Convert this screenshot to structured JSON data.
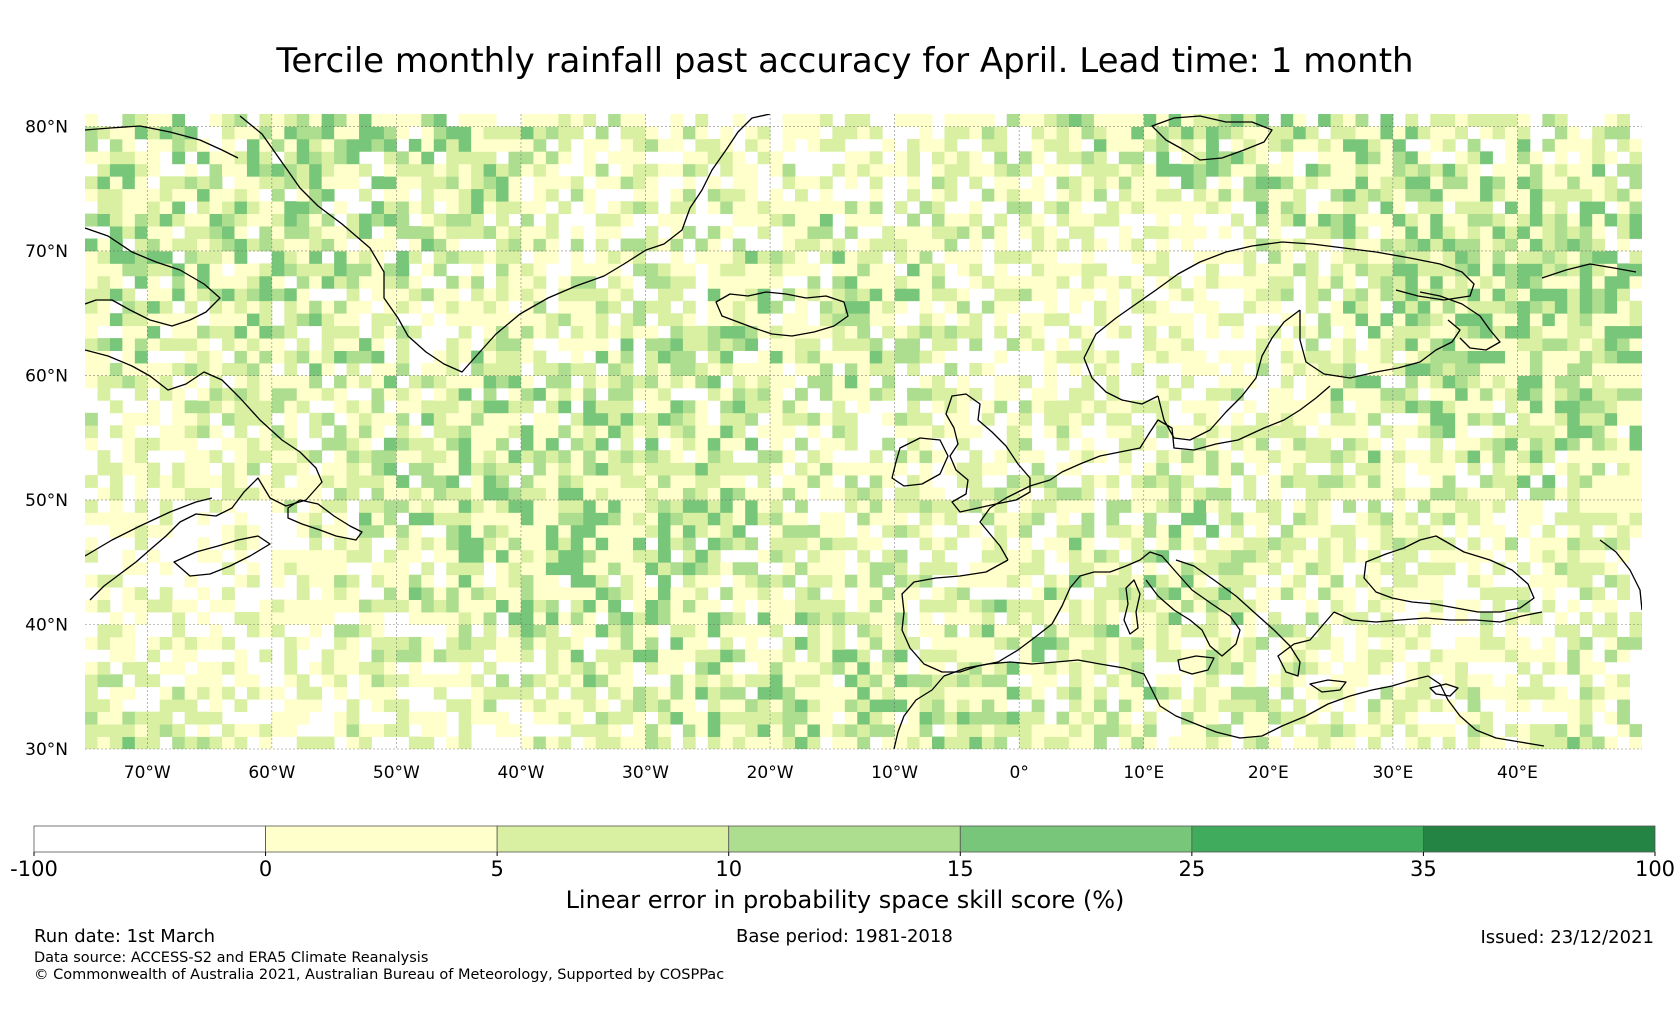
{
  "title": "Tercile monthly rainfall past accuracy for April. Lead time: 1 month",
  "map": {
    "region": "North Atlantic and Europe",
    "lon_range": [
      -75,
      50
    ],
    "lat_range": [
      30,
      81
    ],
    "lat_labels": [
      "80°N",
      "70°N",
      "60°N",
      "50°N",
      "40°N",
      "30°N"
    ],
    "lat_values": [
      80,
      70,
      60,
      50,
      40,
      30
    ],
    "lon_labels": [
      "70°W",
      "60°W",
      "50°W",
      "40°W",
      "30°W",
      "20°W",
      "10°W",
      "0°",
      "10°E",
      "20°E",
      "30°E",
      "40°E"
    ],
    "lon_values": [
      -70,
      -60,
      -50,
      -40,
      -30,
      -20,
      -10,
      0,
      10,
      20,
      30,
      40
    ],
    "grid_step_degrees": 1
  },
  "colorbar": {
    "boundaries": [
      "-100",
      "0",
      "5",
      "10",
      "15",
      "25",
      "35",
      "100"
    ],
    "colors": [
      "#ffffff",
      "#ffffcc",
      "#d9f0a3",
      "#addd8e",
      "#78c679",
      "#41ab5d",
      "#238443"
    ],
    "label": "Linear error in probability space skill score (%)"
  },
  "footer": {
    "run_date": "Run date: 1st March",
    "base_period": "Base period: 1981-2018",
    "issued": "Issued: 23/12/2021",
    "data_source": "Data source: ACCESS-S2 and ERA5 Climate Reanalysis",
    "copyright": "© Commonwealth of Australia 2021, Australian Bureau of Meteorology, Supported by COSPPac"
  }
}
